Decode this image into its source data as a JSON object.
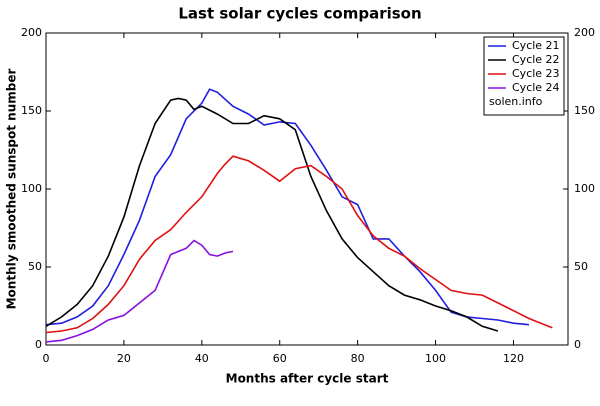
{
  "chart_data": {
    "type": "line",
    "title": "Last solar cycles comparison",
    "x_label": "Months after cycle start",
    "y_label": "Monthly smoothed sunspot number",
    "annotation": "solen.info",
    "xlim": [
      0,
      134
    ],
    "xticks": [
      0,
      20,
      40,
      60,
      80,
      100,
      120
    ],
    "ylim": [
      0,
      200
    ],
    "yticks": [
      0,
      50,
      100,
      150,
      200
    ],
    "grid": false,
    "legend": "top-right",
    "series": [
      {
        "name": "Cycle 21",
        "color": "#1f1fe0",
        "x": [
          0,
          4,
          8,
          12,
          16,
          20,
          24,
          28,
          32,
          36,
          40,
          42,
          44,
          48,
          52,
          56,
          60,
          64,
          68,
          72,
          76,
          80,
          84,
          88,
          92,
          96,
          100,
          104,
          108,
          112,
          116,
          120,
          124
        ],
        "values": [
          13,
          14,
          18,
          25,
          38,
          58,
          80,
          108,
          122,
          145,
          155,
          164,
          162,
          153,
          148,
          141,
          143,
          142,
          128,
          112,
          95,
          90,
          68,
          68,
          57,
          47,
          35,
          21,
          18,
          17,
          16,
          14,
          13
        ]
      },
      {
        "name": "Cycle 22",
        "color": "#000000",
        "x": [
          0,
          4,
          8,
          12,
          16,
          20,
          24,
          28,
          32,
          34,
          36,
          38,
          40,
          44,
          48,
          52,
          56,
          60,
          64,
          68,
          72,
          76,
          80,
          84,
          88,
          92,
          96,
          100,
          104,
          108,
          112,
          116
        ],
        "values": [
          12,
          18,
          26,
          38,
          57,
          82,
          115,
          142,
          157,
          158,
          157,
          151,
          153,
          148,
          142,
          142,
          147,
          145,
          138,
          108,
          86,
          68,
          56,
          47,
          38,
          32,
          29,
          25,
          22,
          18,
          12,
          9
        ]
      },
      {
        "name": "Cycle 23",
        "color": "#e01010",
        "x": [
          0,
          4,
          8,
          12,
          16,
          20,
          24,
          28,
          32,
          36,
          40,
          44,
          46,
          48,
          52,
          56,
          60,
          64,
          68,
          72,
          76,
          80,
          84,
          88,
          92,
          96,
          100,
          104,
          108,
          112,
          116,
          120,
          124,
          128,
          130
        ],
        "values": [
          8,
          9,
          11,
          17,
          26,
          38,
          55,
          67,
          74,
          85,
          95,
          110,
          116,
          121,
          118,
          112,
          105,
          113,
          115,
          108,
          100,
          83,
          70,
          62,
          57,
          49,
          42,
          35,
          33,
          32,
          27,
          22,
          17,
          13,
          11
        ]
      },
      {
        "name": "Cycle 24",
        "color": "#8a10e0",
        "x": [
          0,
          4,
          8,
          12,
          16,
          20,
          24,
          28,
          32,
          36,
          38,
          40,
          42,
          44,
          46,
          48
        ],
        "values": [
          2,
          3,
          6,
          10,
          16,
          19,
          27,
          35,
          58,
          62,
          67,
          64,
          58,
          57,
          59,
          60
        ]
      }
    ]
  }
}
